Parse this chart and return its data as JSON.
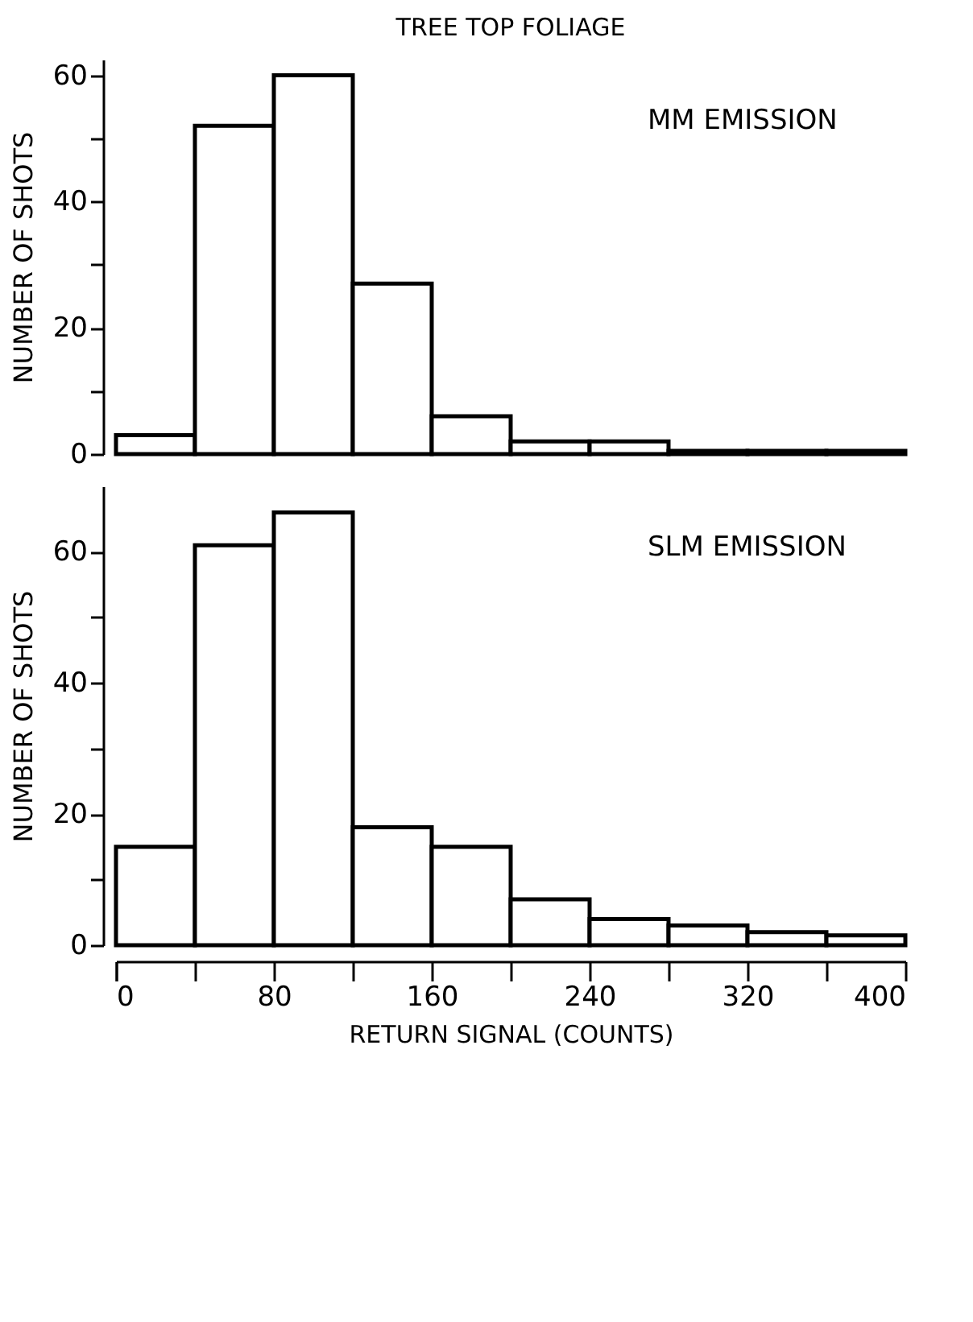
{
  "chart_data": [
    {
      "type": "histogram",
      "title": "TREE TOP FOLIAGE",
      "ylabel": "NUMBER OF SHOTS",
      "annotations": [
        "MM EMISSION"
      ],
      "bins": [
        0,
        40,
        80,
        120,
        160,
        200,
        240,
        280,
        320,
        360,
        400
      ],
      "values": [
        3,
        52,
        60,
        27,
        6,
        2,
        2,
        0.5,
        0.5,
        0.5
      ],
      "color": "#000000",
      "xlim": [
        0,
        400
      ],
      "ylim": [
        0,
        62.5
      ],
      "yticks": [
        0,
        {
          "value": 10,
          "label": null
        },
        20,
        {
          "value": 30,
          "label": null
        },
        40,
        {
          "value": 50,
          "label": null
        },
        60
      ],
      "tick_labels": "y",
      "grid": false
    },
    {
      "type": "histogram",
      "xlabel": "RETURN SIGNAL (COUNTS)",
      "ylabel": "NUMBER OF SHOTS",
      "annotations": [
        "SLM EMISSION"
      ],
      "bins": [
        0,
        40,
        80,
        120,
        160,
        200,
        240,
        280,
        320,
        360,
        400
      ],
      "values": [
        15,
        61,
        66,
        18,
        15,
        7,
        4,
        3,
        2,
        1.5
      ],
      "color": "#000000",
      "xlim": [
        0,
        400
      ],
      "ylim": [
        0,
        70
      ],
      "xticks": [
        0,
        {
          "value": 40,
          "label": null
        },
        80,
        {
          "value": 120,
          "label": null
        },
        160,
        {
          "value": 200,
          "label": null
        },
        240,
        {
          "value": 280,
          "label": null
        },
        320,
        {
          "value": 360,
          "label": null
        },
        400
      ],
      "yticks": [
        0,
        {
          "value": 10,
          "label": null
        },
        20,
        {
          "value": 30,
          "label": null
        },
        40,
        {
          "value": 50,
          "label": null
        },
        60
      ],
      "grid": false
    }
  ]
}
